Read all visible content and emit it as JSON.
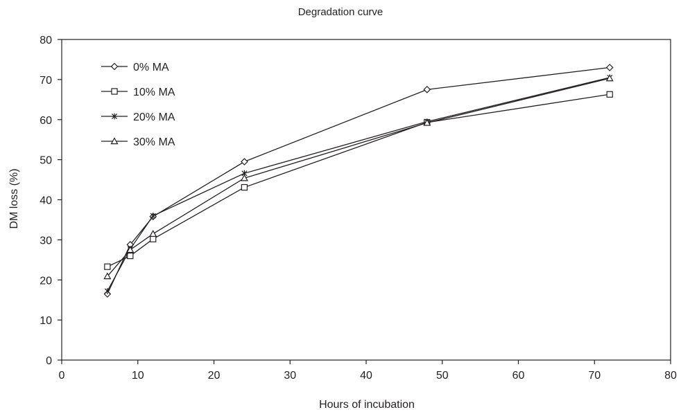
{
  "chart_data": {
    "type": "line",
    "title": "Degradation curve",
    "xlabel": "Hours of incubation",
    "ylabel": "DM loss (%)",
    "xlim": [
      0,
      80
    ],
    "ylim": [
      0,
      80
    ],
    "xticks": [
      0,
      10,
      20,
      30,
      40,
      50,
      60,
      70,
      80
    ],
    "yticks": [
      0,
      10,
      20,
      30,
      40,
      50,
      60,
      70,
      80
    ],
    "grid": false,
    "legend_position": "top-left",
    "x": [
      6,
      9,
      12,
      24,
      48,
      72
    ],
    "series": [
      {
        "name": "0% MA",
        "marker": "diamond",
        "values": [
          16.5,
          28.8,
          35.8,
          49.5,
          67.5,
          73.0
        ]
      },
      {
        "name": "10% MA",
        "marker": "square",
        "values": [
          23.3,
          26.0,
          30.2,
          43.1,
          59.3,
          66.3
        ]
      },
      {
        "name": "20% MA",
        "marker": "star",
        "values": [
          17.2,
          27.7,
          36.0,
          46.6,
          59.5,
          70.5
        ]
      },
      {
        "name": "30% MA",
        "marker": "triangle",
        "values": [
          20.9,
          27.5,
          31.5,
          45.4,
          59.2,
          70.3
        ]
      }
    ],
    "line_color": "#231f20"
  }
}
